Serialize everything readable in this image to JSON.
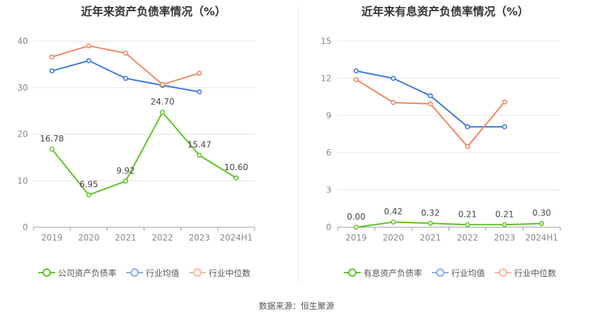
{
  "source": "数据来源：恒生聚源",
  "chart_data": [
    {
      "type": "line",
      "title": "近年来资产负债率情况（%）",
      "categories": [
        "2019",
        "2020",
        "2021",
        "2022",
        "2023",
        "2024H1"
      ],
      "ylim": [
        0,
        40
      ],
      "yticks": [
        "0",
        "10",
        "20",
        "30",
        "40"
      ],
      "grid": true,
      "legend_position": "bottom",
      "series": [
        {
          "name": "公司资产负债率",
          "color": "#5cc424",
          "values": [
            16.78,
            6.95,
            9.92,
            24.7,
            15.47,
            10.6
          ],
          "labels": [
            "16.78",
            "6.95",
            "9.92",
            "24.70",
            "15.47",
            "10.60"
          ]
        },
        {
          "name": "行业均值",
          "color": "#3d76dd",
          "values": [
            33.6,
            35.8,
            32.0,
            30.5,
            29.1,
            null
          ]
        },
        {
          "name": "行业中位数",
          "color": "#f2865f",
          "values": [
            36.6,
            39.0,
            37.4,
            30.7,
            33.1,
            null
          ]
        }
      ]
    },
    {
      "type": "line",
      "title": "近年来有息资产负债率情况（%）",
      "categories": [
        "2019",
        "2020",
        "2021",
        "2022",
        "2023",
        "2024H1"
      ],
      "ylim": [
        0,
        15
      ],
      "yticks": [
        "0",
        "3",
        "6",
        "9",
        "12",
        "15"
      ],
      "grid": true,
      "legend_position": "bottom",
      "series": [
        {
          "name": "有息资产负债率",
          "color": "#5cc424",
          "values": [
            0.0,
            0.42,
            0.32,
            0.21,
            0.21,
            0.3
          ],
          "labels": [
            "0.00",
            "0.42",
            "0.32",
            "0.21",
            "0.21",
            "0.30"
          ]
        },
        {
          "name": "行业均值",
          "color": "#3d76dd",
          "values": [
            12.6,
            12.0,
            10.6,
            8.1,
            8.1,
            null
          ]
        },
        {
          "name": "行业中位数",
          "color": "#f2865f",
          "values": [
            11.9,
            10.05,
            9.95,
            6.5,
            10.1,
            null
          ]
        }
      ]
    }
  ]
}
